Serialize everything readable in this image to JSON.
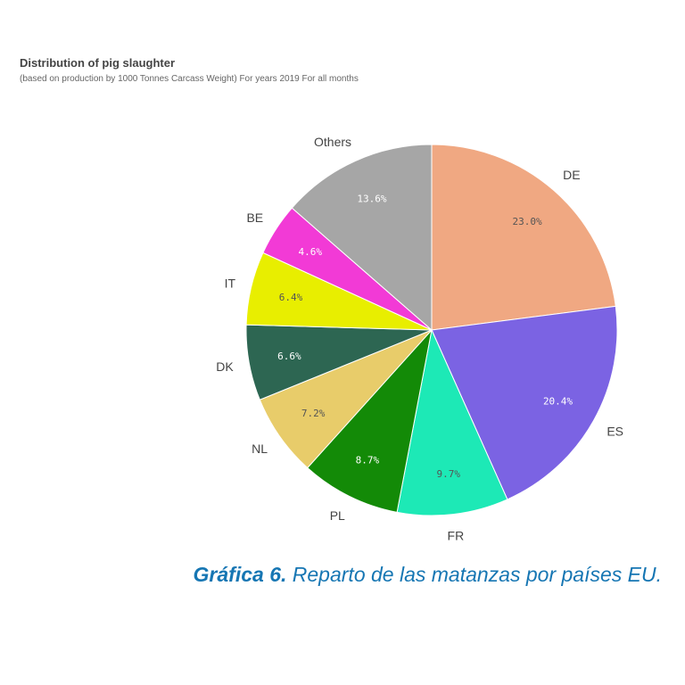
{
  "header": {
    "title": "Distribution of pig slaughter",
    "subtitle": "(based on production by 1000 Tonnes Carcass Weight) For years 2019 For all months"
  },
  "caption": {
    "lead": "Gráfica 6.",
    "text": " Reparto de las matanzas por países EU."
  },
  "chart_data": {
    "type": "pie",
    "title": "Distribution of pig slaughter",
    "subtitle": "(based on production by 1000 Tonnes Carcass Weight) For years 2019 For all months",
    "start": "12 o'clock",
    "direction": "clockwise",
    "slices": [
      {
        "label": "DE",
        "value": 23.0,
        "pct_text": "23.0%",
        "color": "#f0a882",
        "pct_color": "#555555"
      },
      {
        "label": "ES",
        "value": 20.4,
        "pct_text": "20.4%",
        "color": "#7b63e3",
        "pct_color": "#ffffff"
      },
      {
        "label": "FR",
        "value": 9.7,
        "pct_text": "9.7%",
        "color": "#1de9b6",
        "pct_color": "#555555"
      },
      {
        "label": "PL",
        "value": 8.7,
        "pct_text": "8.7%",
        "color": "#138a07",
        "pct_color": "#ffffff"
      },
      {
        "label": "NL",
        "value": 7.2,
        "pct_text": "7.2%",
        "color": "#e8cc6a",
        "pct_color": "#555555"
      },
      {
        "label": "DK",
        "value": 6.6,
        "pct_text": "6.6%",
        "color": "#2d6652",
        "pct_color": "#ffffff"
      },
      {
        "label": "IT",
        "value": 6.4,
        "pct_text": "6.4%",
        "color": "#e8ee00",
        "pct_color": "#555555"
      },
      {
        "label": "BE",
        "value": 4.6,
        "pct_text": "4.6%",
        "color": "#f23ad6",
        "pct_color": "#ffffff"
      },
      {
        "label": "Others",
        "value": 13.6,
        "pct_text": "13.6%",
        "color": "#a6a6a6",
        "pct_color": "#ffffff"
      }
    ]
  }
}
